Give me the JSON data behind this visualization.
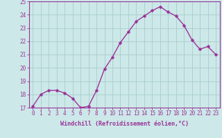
{
  "x": [
    0,
    1,
    2,
    3,
    4,
    5,
    6,
    7,
    8,
    9,
    10,
    11,
    12,
    13,
    14,
    15,
    16,
    17,
    18,
    19,
    20,
    21,
    22,
    23
  ],
  "y": [
    17.1,
    18.0,
    18.3,
    18.3,
    18.1,
    17.7,
    17.0,
    17.1,
    18.3,
    19.9,
    20.8,
    21.9,
    22.7,
    23.5,
    23.9,
    24.3,
    24.6,
    24.2,
    23.9,
    23.2,
    22.1,
    21.4,
    21.6,
    21.0
  ],
  "line_color": "#993399",
  "marker_color": "#993399",
  "bg_color": "#cce8e8",
  "grid_color": "#aacccc",
  "axis_color": "#993399",
  "tick_color": "#993399",
  "xlabel": "Windchill (Refroidissement éolien,°C)",
  "ylim": [
    17,
    25
  ],
  "yticks": [
    17,
    18,
    19,
    20,
    21,
    22,
    23,
    24,
    25
  ],
  "xticks": [
    0,
    1,
    2,
    3,
    4,
    5,
    6,
    7,
    8,
    9,
    10,
    11,
    12,
    13,
    14,
    15,
    16,
    17,
    18,
    19,
    20,
    21,
    22,
    23
  ],
  "xlabel_fontsize": 6.0,
  "tick_fontsize": 5.5,
  "line_width": 1.0,
  "marker_size": 2.5
}
